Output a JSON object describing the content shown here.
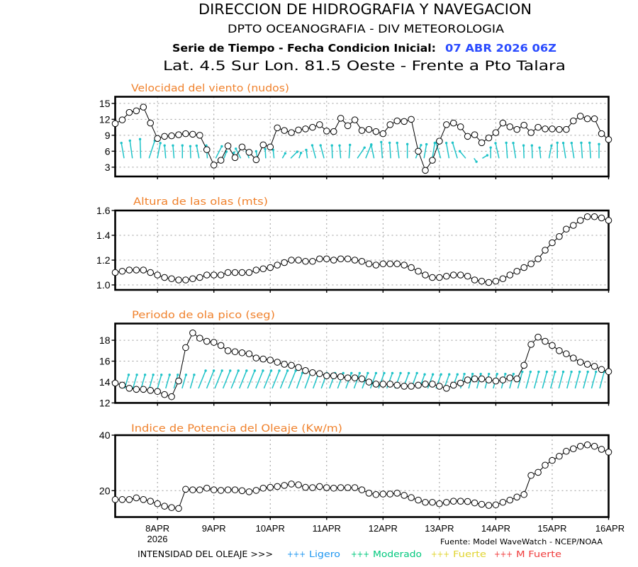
{
  "header": {
    "title": "DIRECCION DE HIDROGRAFIA Y NAVEGACION",
    "subtitle": "DPTO OCEANOGRAFIA - DIV METEOROLOGIA",
    "series_label": "Serie de Tiempo - Fecha Condicion Inicial:",
    "init_date": "07 ABR 2026 06Z",
    "location": "Lat. 4.5 Sur  Lon. 81.5 Oeste - Frente a Pto Talara"
  },
  "colors": {
    "panel_title": "#f0822d",
    "init_date": "#2a4bff",
    "vectors": "#1ec3c8"
  },
  "chart_data": [
    {
      "id": "wind-speed",
      "type": "line",
      "title": "Velocidad del viento (nudos)",
      "x_start": "07 ABR 2026 06Z",
      "x_step_hours": 3,
      "xlim_hours": [
        0,
        210
      ],
      "xticks": [
        {
          "label": "8APR",
          "hour": 18
        },
        {
          "label": "9APR",
          "hour": 42
        },
        {
          "label": "10APR",
          "hour": 66
        },
        {
          "label": "11APR",
          "hour": 90
        },
        {
          "label": "12APR",
          "hour": 114
        },
        {
          "label": "13APR",
          "hour": 138
        },
        {
          "label": "14APR",
          "hour": 162
        },
        {
          "label": "15APR",
          "hour": 186
        },
        {
          "label": "16APR",
          "hour": 210
        }
      ],
      "ylim": [
        1.25,
        16.25
      ],
      "yticks": [
        3,
        6,
        9,
        12,
        15
      ],
      "ytick_labels": [
        "3",
        "6",
        "9",
        "12",
        "15"
      ],
      "grid": true,
      "series": [
        {
          "name": "Velocidad del viento",
          "unit": "nudos",
          "values": [
            11.2,
            11.9,
            13.3,
            13.6,
            14.3,
            11.3,
            8.4,
            8.8,
            8.9,
            9.1,
            9.3,
            9.2,
            9.0,
            6.3,
            3.4,
            4.3,
            7.0,
            4.8,
            6.8,
            5.8,
            4.4,
            7.2,
            6.8,
            10.4,
            9.9,
            9.5,
            10.0,
            10.2,
            10.5,
            11.0,
            9.8,
            9.7,
            12.2,
            10.8,
            11.9,
            9.9,
            10.1,
            9.7,
            9.3,
            11.0,
            11.7,
            11.6,
            12.0,
            6.0,
            2.4,
            4.3,
            7.9,
            11.0,
            11.3,
            10.6,
            8.8,
            9.1,
            7.6,
            8.5,
            9.5,
            11.3,
            10.6,
            10.1,
            10.9,
            9.5,
            10.5,
            10.2,
            10.2,
            10.1,
            10.1,
            11.7,
            12.6,
            12.1,
            12.1,
            9.3,
            8.2
          ]
        }
      ],
      "vectors": {
        "name": "Direccion del viento",
        "angles_deg": [
          -10,
          -8,
          -2,
          18,
          11,
          -5,
          -5,
          0,
          -2,
          -11,
          -5,
          27,
          20,
          15,
          -27,
          -20,
          -10,
          -3,
          -6,
          30,
          45,
          20,
          -8,
          -15,
          -15,
          -2,
          -5,
          4,
          34,
          22,
          -12,
          -4,
          -4,
          -7,
          0,
          22,
          10,
          9,
          -17,
          -10,
          -17,
          -40,
          145,
          59,
          0,
          -13,
          -4,
          -9,
          -2,
          -2,
          -6,
          11,
          0,
          -9,
          -9,
          -4,
          -4,
          0
        ],
        "relative_length": [
          0.81,
          0.93,
          1.0,
          0.96,
          0.81,
          0.67,
          0.67,
          0.67,
          0.63,
          0.67,
          0.67,
          0.7,
          0.37,
          0.3,
          0.56,
          0.37,
          0.37,
          0.48,
          0.44,
          0.3,
          0.48,
          0.3,
          0.44,
          0.7,
          0.7,
          0.67,
          0.67,
          0.7,
          0.67,
          0.78,
          0.7,
          0.85,
          0.81,
          0.81,
          0.74,
          0.74,
          0.74,
          0.81,
          0.85,
          0.81,
          0.85,
          0.48,
          0.22,
          0.3,
          0.56,
          0.81,
          0.81,
          0.81,
          0.67,
          0.67,
          0.56,
          0.67,
          0.81,
          0.81,
          0.81,
          0.81,
          0.81,
          0.74
        ]
      }
    },
    {
      "id": "wave-height",
      "type": "line",
      "title": "Altura de las olas (mts)",
      "x_start": "07 ABR 2026 06Z",
      "x_step_hours": 3,
      "xlim_hours": [
        0,
        210
      ],
      "xticks": [
        {
          "label": "8APR",
          "hour": 18
        },
        {
          "label": "9APR",
          "hour": 42
        },
        {
          "label": "10APR",
          "hour": 66
        },
        {
          "label": "11APR",
          "hour": 90
        },
        {
          "label": "12APR",
          "hour": 114
        },
        {
          "label": "13APR",
          "hour": 138
        },
        {
          "label": "14APR",
          "hour": 162
        },
        {
          "label": "15APR",
          "hour": 186
        },
        {
          "label": "16APR",
          "hour": 210
        }
      ],
      "ylim": [
        0.96,
        1.6
      ],
      "yticks": [
        1.0,
        1.2,
        1.4,
        1.6
      ],
      "ytick_labels": [
        "1.0",
        "1.2",
        "1.4",
        "1.6"
      ],
      "grid": true,
      "series": [
        {
          "name": "Altura de las olas",
          "unit": "m",
          "values": [
            1.1,
            1.11,
            1.12,
            1.12,
            1.12,
            1.1,
            1.08,
            1.06,
            1.05,
            1.04,
            1.04,
            1.05,
            1.06,
            1.08,
            1.08,
            1.08,
            1.1,
            1.1,
            1.1,
            1.1,
            1.12,
            1.13,
            1.14,
            1.16,
            1.18,
            1.2,
            1.2,
            1.19,
            1.19,
            1.21,
            1.21,
            1.2,
            1.21,
            1.21,
            1.2,
            1.19,
            1.17,
            1.16,
            1.17,
            1.17,
            1.17,
            1.16,
            1.14,
            1.11,
            1.08,
            1.06,
            1.06,
            1.07,
            1.08,
            1.08,
            1.07,
            1.04,
            1.03,
            1.02,
            1.03,
            1.05,
            1.08,
            1.11,
            1.14,
            1.17,
            1.21,
            1.28,
            1.34,
            1.39,
            1.45,
            1.48,
            1.52,
            1.55,
            1.55,
            1.54,
            1.52
          ]
        }
      ]
    },
    {
      "id": "peak-period",
      "type": "line",
      "title": "Periodo de ola pico (seg)",
      "x_start": "07 ABR 2026 06Z",
      "x_step_hours": 3,
      "xlim_hours": [
        0,
        210
      ],
      "xticks": [
        {
          "label": "8APR",
          "hour": 18
        },
        {
          "label": "9APR",
          "hour": 42
        },
        {
          "label": "10APR",
          "hour": 66
        },
        {
          "label": "11APR",
          "hour": 90
        },
        {
          "label": "12APR",
          "hour": 114
        },
        {
          "label": "13APR",
          "hour": 138
        },
        {
          "label": "14APR",
          "hour": 162
        },
        {
          "label": "15APR",
          "hour": 186
        },
        {
          "label": "16APR",
          "hour": 210
        }
      ],
      "ylim": [
        12,
        19.6
      ],
      "yticks": [
        12,
        14,
        16,
        18
      ],
      "ytick_labels": [
        "12",
        "14",
        "16",
        "18"
      ],
      "grid": true,
      "series": [
        {
          "name": "Periodo de ola pico",
          "unit": "s",
          "values": [
            13.9,
            13.7,
            13.4,
            13.3,
            13.3,
            13.2,
            13.1,
            12.8,
            12.6,
            14.1,
            17.3,
            18.7,
            18.2,
            17.9,
            17.8,
            17.5,
            17.0,
            16.9,
            16.8,
            16.7,
            16.3,
            16.2,
            16.1,
            15.9,
            15.7,
            15.6,
            15.4,
            15.1,
            14.9,
            14.8,
            14.6,
            14.6,
            14.5,
            14.4,
            14.4,
            14.3,
            14.0,
            13.8,
            13.8,
            13.8,
            13.7,
            13.6,
            13.6,
            13.7,
            13.8,
            13.8,
            13.6,
            13.4,
            13.7,
            13.9,
            14.2,
            14.3,
            14.3,
            14.2,
            14.1,
            14.2,
            14.4,
            14.3,
            15.6,
            17.6,
            18.3,
            17.9,
            17.5,
            17.0,
            16.7,
            16.3,
            15.9,
            15.7,
            15.5,
            15.2,
            15.0
          ]
        }
      ],
      "vectors": {
        "name": "Direccion del oleaje",
        "angles_deg": [
          16,
          16,
          16,
          16,
          16,
          16,
          16,
          16,
          16,
          22,
          22,
          22,
          22,
          22,
          22,
          22,
          22,
          22,
          22,
          22,
          22,
          20,
          20,
          20,
          20,
          20,
          20,
          20,
          20,
          20,
          20,
          20,
          20,
          20,
          20,
          20,
          20,
          20,
          20,
          20,
          20,
          15,
          15,
          15,
          15,
          15,
          15,
          15,
          15,
          15,
          15,
          15,
          15,
          15,
          15,
          15,
          15,
          15,
          15
        ],
        "relative_length": [
          0.74,
          0.74,
          0.74,
          0.74,
          0.74,
          0.74,
          0.74,
          0.74,
          0.74,
          1.0,
          1.0,
          1.0,
          1.0,
          1.0,
          1.0,
          1.0,
          1.0,
          1.0,
          1.0,
          1.0,
          1.0,
          0.85,
          0.85,
          0.85,
          0.85,
          0.85,
          0.85,
          0.85,
          0.85,
          0.85,
          0.85,
          0.85,
          0.85,
          0.85,
          0.85,
          0.85,
          0.78,
          0.78,
          0.78,
          0.78,
          0.78,
          0.78,
          0.78,
          0.78,
          0.78,
          0.78,
          0.78,
          0.78,
          0.9,
          0.9,
          0.9,
          0.9,
          0.9,
          0.9,
          0.9,
          0.9,
          0.9,
          0.9,
          0.9
        ]
      }
    },
    {
      "id": "wave-power",
      "type": "line",
      "title": "Indice de Potencia del Oleaje (Kw/m)",
      "x_start": "07 ABR 2026 06Z",
      "x_step_hours": 3,
      "xlim_hours": [
        0,
        210
      ],
      "xticks": [
        {
          "label": "8APR",
          "hour": 18
        },
        {
          "label": "9APR",
          "hour": 42
        },
        {
          "label": "10APR",
          "hour": 66
        },
        {
          "label": "11APR",
          "hour": 90
        },
        {
          "label": "12APR",
          "hour": 114
        },
        {
          "label": "13APR",
          "hour": 138
        },
        {
          "label": "14APR",
          "hour": 162
        },
        {
          "label": "15APR",
          "hour": 186
        },
        {
          "label": "16APR",
          "hour": 210
        }
      ],
      "xtick_sublabel": "2026",
      "ylim": [
        10.5,
        40
      ],
      "yticks": [
        20,
        40
      ],
      "ytick_labels": [
        "20",
        "40"
      ],
      "grid": true,
      "series": [
        {
          "name": "Indice de Potencia del Oleaje",
          "unit": "Kw/m",
          "values": [
            16.8,
            16.8,
            16.8,
            17.4,
            16.8,
            16.2,
            15.3,
            14.4,
            13.9,
            13.6,
            20.5,
            20.3,
            20.3,
            20.9,
            20.3,
            20.1,
            20.3,
            20.3,
            20.0,
            19.6,
            20.1,
            20.9,
            21.2,
            21.5,
            21.9,
            22.4,
            22.1,
            21.2,
            21.1,
            21.5,
            21.1,
            20.9,
            21.1,
            21.1,
            21.1,
            20.3,
            19.1,
            18.6,
            18.8,
            18.8,
            19.1,
            18.3,
            17.5,
            16.6,
            15.8,
            15.8,
            15.3,
            15.8,
            16.2,
            16.2,
            16.1,
            15.6,
            15.1,
            14.7,
            14.9,
            15.8,
            16.6,
            17.7,
            18.6,
            25.5,
            26.6,
            29.2,
            30.9,
            32.4,
            34.2,
            35.1,
            36.0,
            36.5,
            36.0,
            34.9,
            33.9
          ]
        }
      ]
    }
  ],
  "footer": {
    "source": "Fuente: Model WaveWatch - NCEP/NOAA",
    "legend_title": "INTENSIDAD DEL OLEAJE >>>",
    "legend": [
      {
        "symbol": "+++",
        "label": "Ligero",
        "color": "#1e96f0"
      },
      {
        "symbol": "+++",
        "label": "Moderado",
        "color": "#00c87d"
      },
      {
        "symbol": "+++",
        "label": "Fuerte",
        "color": "#e0d430"
      },
      {
        "symbol": "+++",
        "label": "M Fuerte",
        "color": "#f03c3c"
      }
    ]
  }
}
